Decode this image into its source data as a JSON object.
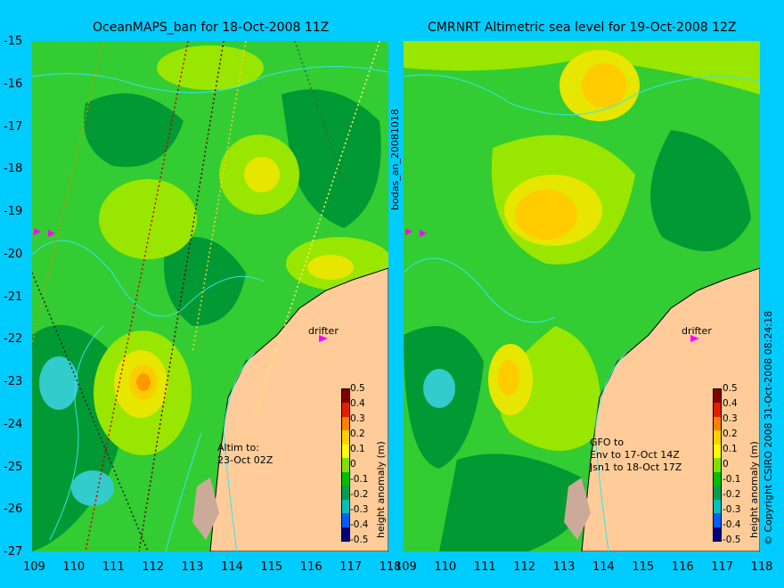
{
  "left_panel": {
    "title": "OceanMAPS_ban for 18-Oct-2008 11Z",
    "annotation_line1": "Altim to:",
    "annotation_line2": "23-Oct 02Z",
    "drifter_label": "drifter"
  },
  "right_panel": {
    "title": "CMRNRT Altimetric sea level  for 19-Oct-2008 12Z",
    "annotation_line1": "GFO to",
    "annotation_line2": "Env to 17-Oct 14Z",
    "annotation_line3": "Jsn1 to 18-Oct 17Z",
    "drifter_label": "drifter"
  },
  "y_ticks": [
    "-15",
    "-16",
    "-17",
    "-18",
    "-19",
    "-20",
    "-21",
    "-22",
    "-23",
    "-24",
    "-25",
    "-26",
    "-27"
  ],
  "x_ticks": [
    "109",
    "110",
    "111",
    "112",
    "113",
    "114",
    "115",
    "116",
    "117",
    "118"
  ],
  "colorbar": {
    "label": "height anomaly (m)",
    "ticks": [
      "0.5",
      "0.4",
      "0.3",
      "0.2",
      "0.1",
      "0",
      "-0.1",
      "-0.2",
      "-0.3",
      "-0.4",
      "-0.5"
    ],
    "colors": [
      "#800000",
      "#e02000",
      "#ff8000",
      "#ffd000",
      "#ffff00",
      "#80e000",
      "#00c000",
      "#00a050",
      "#00c0c0",
      "#0060ff",
      "#000080"
    ]
  },
  "side_label": "bodas_an_20081018",
  "copyright": "© Copyright CSIRO 2008   31-Oct-2008 08:24:18",
  "colors": {
    "background": "#00ccff",
    "land": "#ffcc99",
    "green_dark": "#009933",
    "green": "#33cc33",
    "yellow_green": "#99e600",
    "yellow": "#e6e600",
    "orange": "#ff9900",
    "cyan_contour": "#33e6e6"
  }
}
